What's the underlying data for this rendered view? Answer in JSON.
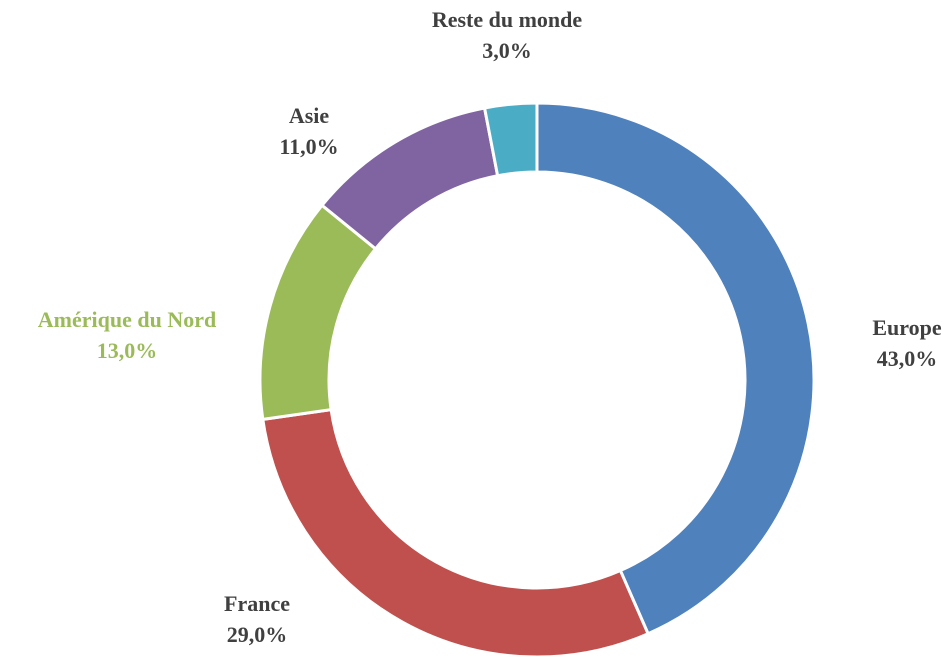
{
  "chart_data": {
    "type": "donut",
    "categories": [
      "Europe",
      "France",
      "Amérique du Nord",
      "Asie",
      "Reste du monde"
    ],
    "values": [
      43,
      29,
      13,
      11,
      3
    ],
    "value_labels": [
      "43,0%",
      "29,0%",
      "13,0%",
      "11,0%",
      "3,0%"
    ],
    "colors": [
      "#4f81bd",
      "#c0504d",
      "#9bbb59",
      "#8064a2",
      "#4bacc6"
    ],
    "label_colors": [
      "#404040",
      "#404040",
      "#9bbb59",
      "#404040",
      "#404040"
    ]
  }
}
